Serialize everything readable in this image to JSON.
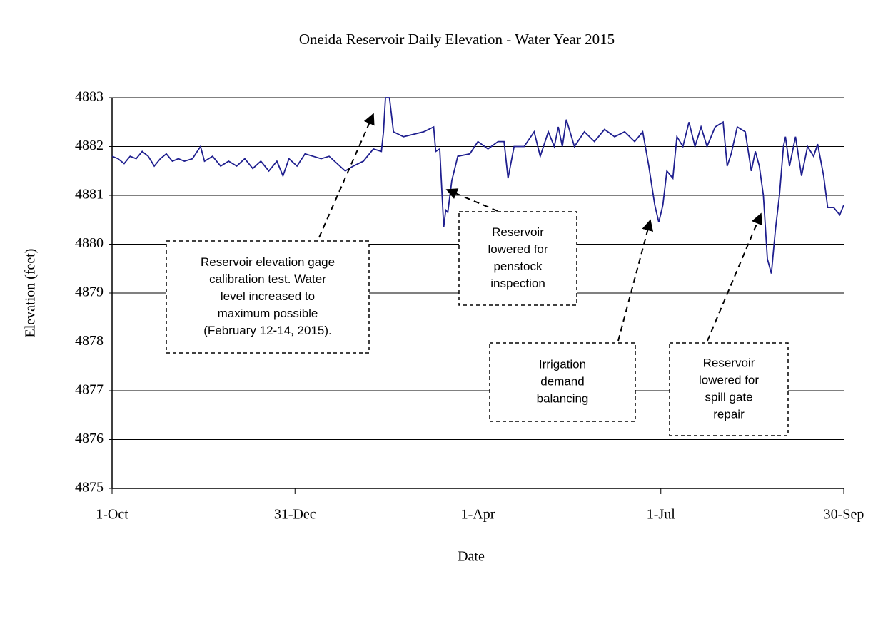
{
  "chart_data": {
    "type": "line",
    "title": "Oneida Reservoir Daily Elevation - Water Year  2015",
    "x_label": "Date",
    "y_label": "Elevation (feet)",
    "xlim": [
      0,
      364
    ],
    "xticks": [
      {
        "value": 0,
        "label": "1-Oct"
      },
      {
        "value": 91,
        "label": "31-Dec"
      },
      {
        "value": 182,
        "label": "1-Apr"
      },
      {
        "value": 273,
        "label": "1-Jul"
      },
      {
        "value": 364,
        "label": "30-Sep"
      }
    ],
    "ylim": [
      4875,
      4883
    ],
    "yticks": [
      4875,
      4876,
      4877,
      4878,
      4879,
      4880,
      4881,
      4882,
      4883
    ],
    "grid": true,
    "series": [
      {
        "color": "#1f1f8f",
        "x": [
          0,
          3,
          6,
          9,
          12,
          15,
          18,
          21,
          24,
          27,
          30,
          33,
          36,
          40,
          44,
          46,
          50,
          54,
          58,
          62,
          66,
          70,
          74,
          78,
          82,
          85,
          88,
          92,
          96,
          100,
          104,
          108,
          112,
          116,
          120,
          125,
          130,
          134,
          135,
          136,
          138,
          140,
          145,
          150,
          155,
          160,
          161,
          163,
          165,
          166,
          167,
          169,
          172,
          178,
          182,
          187,
          192,
          195,
          197,
          200,
          205,
          210,
          213,
          217,
          220,
          222,
          224,
          226,
          230,
          235,
          240,
          245,
          250,
          255,
          260,
          264,
          267,
          270,
          272,
          274,
          276,
          279,
          281,
          284,
          287,
          290,
          293,
          296,
          300,
          304,
          306,
          308,
          311,
          315,
          318,
          320,
          322,
          324,
          326,
          328,
          330,
          332,
          334,
          335,
          337,
          340,
          343,
          346,
          349,
          351,
          354,
          356,
          359,
          362,
          364
        ],
        "values": [
          4881.8,
          4881.75,
          4881.65,
          4881.8,
          4881.75,
          4881.9,
          4881.8,
          4881.6,
          4881.75,
          4881.85,
          4881.7,
          4881.75,
          4881.7,
          4881.75,
          4882.0,
          4881.7,
          4881.8,
          4881.6,
          4881.7,
          4881.6,
          4881.75,
          4881.55,
          4881.7,
          4881.5,
          4881.7,
          4881.4,
          4881.75,
          4881.6,
          4881.85,
          4881.8,
          4881.75,
          4881.8,
          4881.65,
          4881.5,
          4881.6,
          4881.7,
          4881.95,
          4881.9,
          4882.3,
          4883.0,
          4883.0,
          4882.3,
          4882.2,
          4882.25,
          4882.3,
          4882.4,
          4881.9,
          4881.95,
          4880.35,
          4880.7,
          4880.65,
          4881.3,
          4881.8,
          4881.85,
          4882.1,
          4881.95,
          4882.1,
          4882.1,
          4881.35,
          4882.0,
          4882.0,
          4882.3,
          4881.8,
          4882.3,
          4882.0,
          4882.4,
          4882.0,
          4882.55,
          4882.0,
          4882.3,
          4882.1,
          4882.35,
          4882.2,
          4882.3,
          4882.1,
          4882.3,
          4881.6,
          4880.8,
          4880.45,
          4880.8,
          4881.5,
          4881.35,
          4882.2,
          4882.0,
          4882.5,
          4882.0,
          4882.4,
          4882.0,
          4882.4,
          4882.5,
          4881.6,
          4881.85,
          4882.4,
          4882.3,
          4881.5,
          4881.9,
          4881.6,
          4881.0,
          4879.7,
          4879.4,
          4880.3,
          4881.0,
          4882.0,
          4882.2,
          4881.6,
          4882.2,
          4881.4,
          4882.0,
          4881.8,
          4882.05,
          4881.4,
          4880.75,
          4880.75,
          4880.6,
          4880.8
        ]
      }
    ],
    "annotations": [
      {
        "lines": [
          "Reservoir elevation gage",
          "calibration test. Water",
          "level increased to",
          "maximum possible",
          "(February 12-14, 2015)."
        ]
      },
      {
        "lines": [
          "Reservoir",
          "lowered for",
          "penstock",
          "inspection"
        ]
      },
      {
        "lines": [
          "Irrigation",
          "demand",
          "balancing"
        ]
      },
      {
        "lines": [
          "Reservoir",
          "lowered for",
          "spill gate",
          "repair"
        ]
      }
    ]
  }
}
